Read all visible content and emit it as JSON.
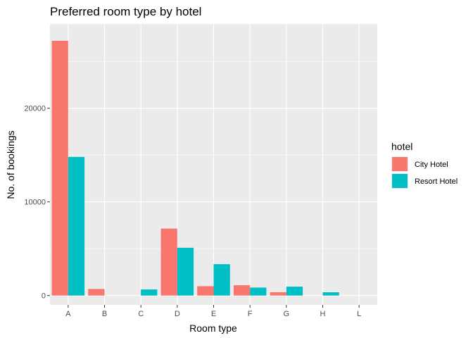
{
  "chart_data": {
    "type": "bar",
    "title": "Preferred room type by hotel",
    "xlabel": "Room type",
    "ylabel": "No. of bookings",
    "categories": [
      "A",
      "B",
      "C",
      "D",
      "E",
      "F",
      "G",
      "H",
      "L"
    ],
    "series": [
      {
        "name": "City Hotel",
        "color": "#F8766D",
        "values": [
          27200,
          700,
          0,
          7150,
          1000,
          1100,
          350,
          0,
          0
        ]
      },
      {
        "name": "Resort Hotel",
        "color": "#00BFC4",
        "values": [
          14800,
          null,
          650,
          5100,
          3350,
          850,
          950,
          350,
          null
        ]
      }
    ],
    "ylim": [
      -1000,
      29000
    ],
    "yticks": [
      0,
      10000,
      20000
    ],
    "ytick_labels": [
      "0",
      "10000",
      "20000"
    ],
    "grid": true,
    "legend": {
      "title": "hotel",
      "position": "right"
    }
  }
}
